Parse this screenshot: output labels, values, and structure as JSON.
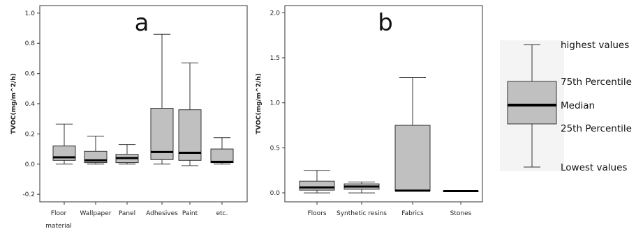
{
  "chart_data": [
    {
      "type": "box",
      "panel_label": "a",
      "ylabel": "TVOC(mg/m^2/h)",
      "ylim": [
        -0.25,
        1.05
      ],
      "yticks": [
        "-0.2",
        "0.0",
        "0.2",
        "0.4",
        "0.6",
        "0.8",
        "1.0"
      ],
      "categories": [
        {
          "lines": [
            "Floor",
            "material"
          ],
          "min": 0.0,
          "q1": 0.025,
          "median": 0.045,
          "q3": 0.12,
          "max": 0.265
        },
        {
          "lines": [
            "Wallpaper"
          ],
          "min": 0.0,
          "q1": 0.01,
          "median": 0.025,
          "q3": 0.085,
          "max": 0.185
        },
        {
          "lines": [
            "Panel"
          ],
          "min": 0.0,
          "q1": 0.01,
          "median": 0.04,
          "q3": 0.065,
          "max": 0.13
        },
        {
          "lines": [
            "Adhesives"
          ],
          "min": 0.0,
          "q1": 0.03,
          "median": 0.08,
          "q3": 0.37,
          "max": 0.86
        },
        {
          "lines": [
            "Paint"
          ],
          "min": -0.01,
          "q1": 0.025,
          "median": 0.075,
          "q3": 0.36,
          "max": 0.67
        },
        {
          "lines": [
            "etc."
          ],
          "min": 0.0,
          "q1": 0.01,
          "median": 0.015,
          "q3": 0.1,
          "max": 0.175
        }
      ]
    },
    {
      "type": "box",
      "panel_label": "b",
      "ylabel": "TVOC(mg/m^2/h)",
      "ylim": [
        -0.1,
        2.08
      ],
      "yticks": [
        "0.0",
        "0.5",
        "1.0",
        "1.5",
        "2.0"
      ],
      "categories": [
        {
          "lines": [
            "Floors"
          ],
          "min": 0.0,
          "q1": 0.03,
          "median": 0.06,
          "q3": 0.13,
          "max": 0.25
        },
        {
          "lines": [
            "Synthetic resins"
          ],
          "min": 0.0,
          "q1": 0.04,
          "median": 0.07,
          "q3": 0.1,
          "max": 0.12
        },
        {
          "lines": [
            "Fabrics"
          ],
          "min": 0.02,
          "q1": 0.02,
          "median": 0.025,
          "q3": 0.75,
          "max": 1.28
        },
        {
          "lines": [
            "Stones"
          ],
          "min": 0.02,
          "q1": 0.02,
          "median": 0.02,
          "q3": 0.02,
          "max": 0.02
        }
      ]
    }
  ],
  "legend": {
    "highest": "highest values",
    "q3": "75th Percentile",
    "median": "Median",
    "q1": "25th Percentile",
    "lowest": "Lowest values"
  }
}
